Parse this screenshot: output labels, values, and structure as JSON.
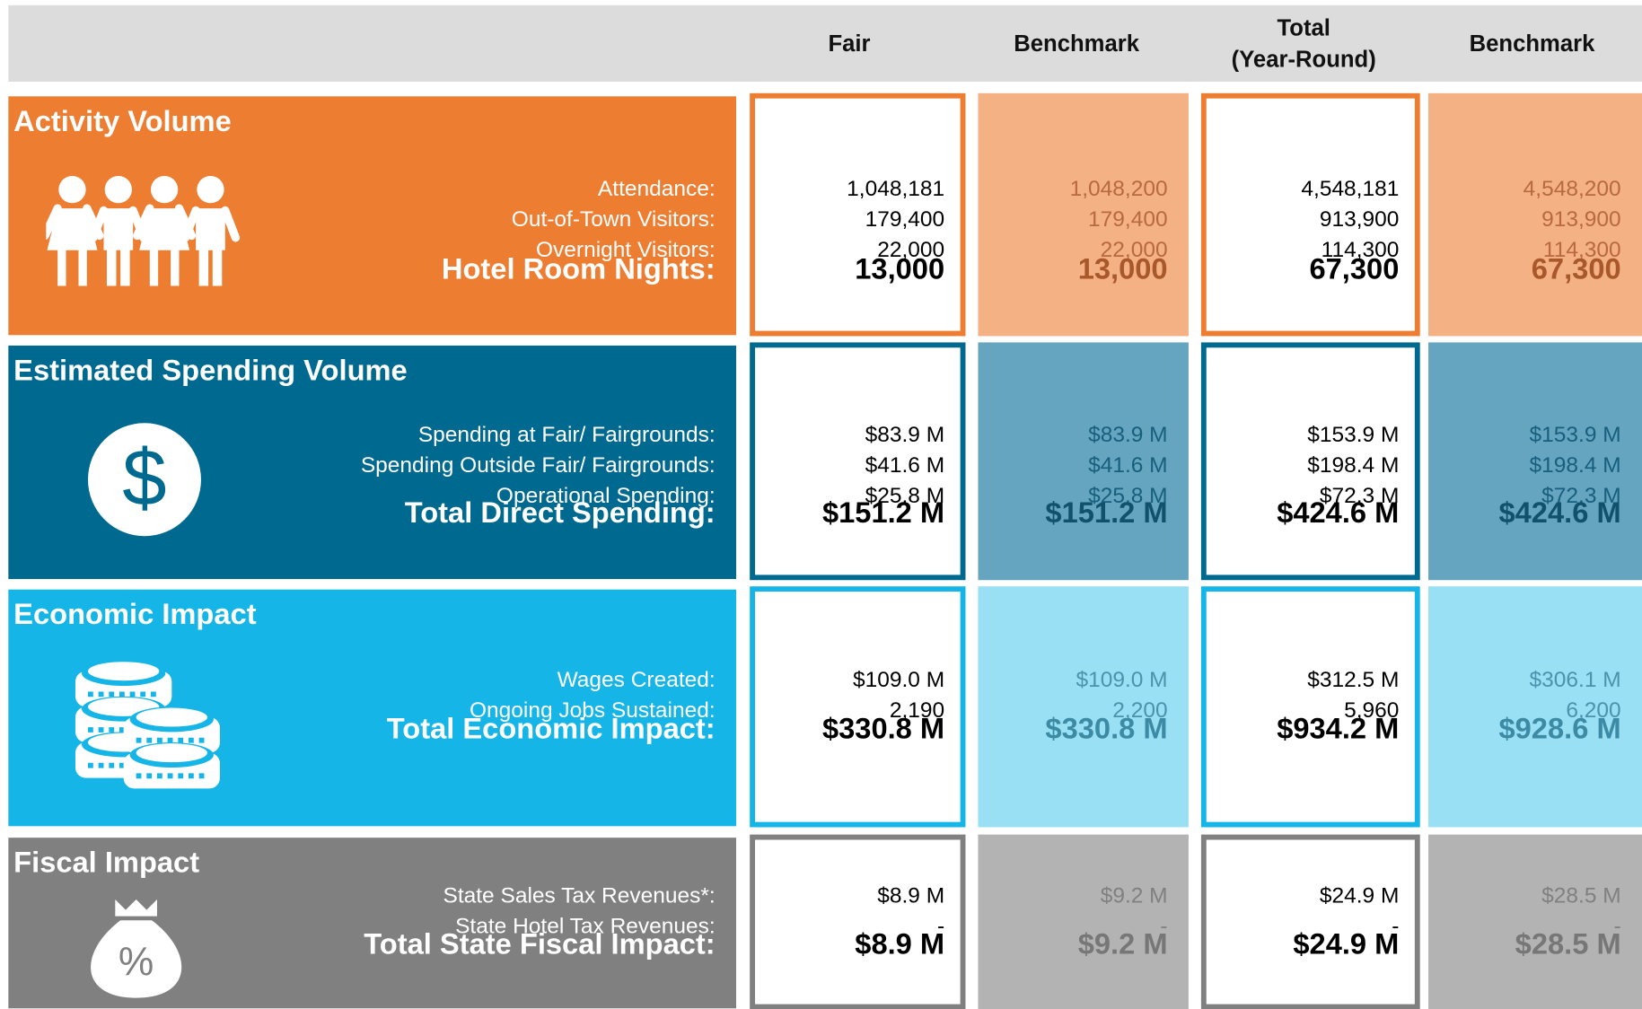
{
  "header": {
    "columns": [
      "Fair",
      "Benchmark",
      "Total\n(Year-Round)",
      "Benchmark"
    ]
  },
  "sections": [
    {
      "title": "Activity Volume",
      "rows": [
        {
          "label": "Attendance:",
          "values": [
            "1,048,181",
            "1,048,200",
            "4,548,181",
            "4,548,200"
          ]
        },
        {
          "label": "Out-of-Town Visitors:",
          "values": [
            "179,400",
            "179,400",
            "913,900",
            "913,900"
          ]
        },
        {
          "label": "Overnight Visitors:",
          "values": [
            "22,000",
            "22,000",
            "114,300",
            "114,300"
          ]
        }
      ],
      "total": {
        "label": "Hotel Room Nights:",
        "values": [
          "13,000",
          "13,000",
          "67,300",
          "67,300"
        ]
      }
    },
    {
      "title": "Estimated Spending Volume",
      "rows": [
        {
          "label": "Spending at Fair/ Fairgrounds:",
          "values": [
            "$83.9 M",
            "$83.9 M",
            "$153.9 M",
            "$153.9 M"
          ]
        },
        {
          "label": "Spending Outside Fair/ Fairgrounds:",
          "values": [
            "$41.6 M",
            "$41.6 M",
            "$198.4 M",
            "$198.4 M"
          ]
        },
        {
          "label": "Operational Spending:",
          "values": [
            "$25.8 M",
            "$25.8 M",
            "$72.3 M",
            "$72.3 M"
          ]
        }
      ],
      "total": {
        "label": "Total Direct Spending:",
        "values": [
          "$151.2 M",
          "$151.2 M",
          "$424.6 M",
          "$424.6 M"
        ]
      }
    },
    {
      "title": "Economic Impact",
      "rows": [
        {
          "label": "Wages Created:",
          "values": [
            "$109.0 M",
            "$109.0 M",
            "$312.5 M",
            "$306.1 M"
          ]
        },
        {
          "label": "Ongoing Jobs Sustained:",
          "values": [
            "2,190",
            "2,200",
            "5,960",
            "6,200"
          ]
        }
      ],
      "total": {
        "label": "Total Economic Impact:",
        "values": [
          "$330.8 M",
          "$330.8 M",
          "$934.2 M",
          "$928.6 M"
        ]
      }
    },
    {
      "title": "Fiscal Impact",
      "rows": [
        {
          "label": "State Sales Tax Revenues*:",
          "values": [
            "$8.9 M",
            "$9.2 M",
            "$24.9 M",
            "$28.5 M"
          ]
        },
        {
          "label": "State Hotel Tax Revenues:",
          "values": [
            "-",
            "-",
            "-",
            "-"
          ]
        }
      ],
      "total": {
        "label": "Total State Fiscal Impact:",
        "values": [
          "$8.9 M",
          "$9.2 M",
          "$24.9 M",
          "$28.5 M"
        ]
      }
    }
  ]
}
